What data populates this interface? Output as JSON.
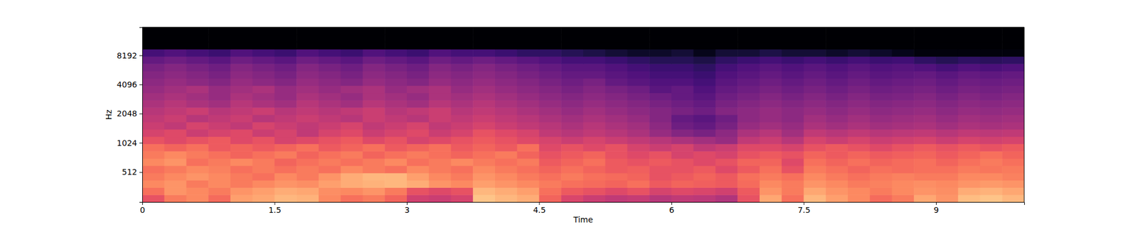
{
  "chart_data": {
    "type": "heatmap",
    "x_label": "Time",
    "y_label": "Hz",
    "xlim": [
      0,
      10
    ],
    "xticks": [
      0,
      1.5,
      3,
      4.5,
      6,
      7.5,
      9
    ],
    "ylim": [
      0,
      16000
    ],
    "yticks": [
      512,
      1024,
      2048,
      4096,
      8192
    ],
    "log": "y",
    "color": "magma",
    "zlim": [
      -80,
      0
    ],
    "x_edges": [
      0,
      0.25,
      0.5,
      0.75,
      1,
      1.25,
      1.5,
      1.75,
      2,
      2.25,
      2.5,
      2.75,
      3,
      3.25,
      3.5,
      3.75,
      4,
      4.25,
      4.5,
      4.75,
      5,
      5.25,
      5.5,
      5.75,
      6,
      6.25,
      6.5,
      6.75,
      7,
      7.25,
      7.5,
      7.75,
      8,
      8.25,
      8.5,
      8.75,
      9,
      9.25,
      9.5,
      9.75,
      10
    ],
    "y_edges": [
      0,
      125,
      250,
      375,
      500,
      625,
      750,
      875,
      1000,
      1189,
      1414,
      1682,
      2000,
      2378,
      2828,
      3364,
      4000,
      4757,
      5657,
      6727,
      8000,
      9514,
      11314,
      13454,
      16000
    ],
    "cells": [
      [
        -30,
        -22,
        -20,
        -25,
        -16,
        -15,
        -12,
        -13,
        -20,
        -24,
        -22,
        -26,
        -35,
        -36,
        -34,
        -10,
        -12,
        -14,
        -26,
        -33,
        -36,
        -38,
        -37,
        -40,
        -38,
        -39,
        -41,
        -30,
        -15,
        -24,
        -12,
        -16,
        -20,
        -25,
        -22,
        -15,
        -18,
        -11,
        -10,
        -12
      ],
      [
        -24,
        -18,
        -20,
        -22,
        -18,
        -16,
        -14,
        -15,
        -19,
        -20,
        -18,
        -22,
        -30,
        -32,
        -30,
        -12,
        -14,
        -16,
        -24,
        -28,
        -30,
        -32,
        -30,
        -34,
        -32,
        -33,
        -35,
        -28,
        -18,
        -22,
        -15,
        -18,
        -20,
        -22,
        -20,
        -18,
        -19,
        -14,
        -13,
        -15
      ],
      [
        -20,
        -18,
        -22,
        -20,
        -22,
        -20,
        -18,
        -19,
        -16,
        -14,
        -13,
        -12,
        -14,
        -18,
        -20,
        -16,
        -18,
        -20,
        -22,
        -24,
        -25,
        -26,
        -24,
        -28,
        -26,
        -27,
        -28,
        -25,
        -20,
        -22,
        -18,
        -20,
        -22,
        -21,
        -20,
        -19,
        -20,
        -18,
        -17,
        -18
      ],
      [
        -22,
        -20,
        -18,
        -20,
        -22,
        -24,
        -20,
        -22,
        -18,
        -14,
        -12,
        -12,
        -16,
        -20,
        -22,
        -18,
        -20,
        -22,
        -24,
        -22,
        -24,
        -25,
        -26,
        -30,
        -28,
        -26,
        -28,
        -24,
        -22,
        -24,
        -20,
        -22,
        -24,
        -22,
        -21,
        -22,
        -22,
        -20,
        -20,
        -21
      ],
      [
        -24,
        -22,
        -20,
        -21,
        -24,
        -22,
        -24,
        -22,
        -24,
        -20,
        -22,
        -24,
        -20,
        -22,
        -24,
        -20,
        -22,
        -24,
        -26,
        -24,
        -26,
        -28,
        -27,
        -30,
        -30,
        -28,
        -32,
        -28,
        -24,
        -30,
        -22,
        -24,
        -26,
        -24,
        -25,
        -24,
        -24,
        -22,
        -23,
        -22
      ],
      [
        -20,
        -18,
        -24,
        -22,
        -20,
        -22,
        -26,
        -24,
        -22,
        -24,
        -22,
        -20,
        -24,
        -22,
        -20,
        -22,
        -24,
        -22,
        -28,
        -26,
        -24,
        -28,
        -30,
        -28,
        -30,
        -32,
        -30,
        -26,
        -26,
        -32,
        -24,
        -26,
        -24,
        -26,
        -25,
        -24,
        -26,
        -24,
        -22,
        -24
      ],
      [
        -22,
        -20,
        -22,
        -24,
        -26,
        -24,
        -22,
        -26,
        -24,
        -22,
        -26,
        -24,
        -22,
        -24,
        -26,
        -24,
        -22,
        -26,
        -30,
        -28,
        -26,
        -30,
        -32,
        -30,
        -34,
        -32,
        -34,
        -30,
        -28,
        -30,
        -26,
        -28,
        -26,
        -28,
        -27,
        -26,
        -28,
        -26,
        -24,
        -26
      ],
      [
        -24,
        -26,
        -24,
        -28,
        -26,
        -28,
        -26,
        -24,
        -28,
        -26,
        -24,
        -28,
        -26,
        -24,
        -28,
        -26,
        -28,
        -24,
        -32,
        -30,
        -32,
        -30,
        -34,
        -36,
        -34,
        -38,
        -36,
        -32,
        -32,
        -34,
        -30,
        -28,
        -30,
        -32,
        -30,
        -28,
        -30,
        -28,
        -30,
        -28
      ],
      [
        -30,
        -32,
        -30,
        -28,
        -32,
        -30,
        -34,
        -32,
        -30,
        -28,
        -32,
        -30,
        -34,
        -32,
        -30,
        -28,
        -30,
        -32,
        -34,
        -36,
        -34,
        -36,
        -38,
        -40,
        -42,
        -44,
        -46,
        -38,
        -36,
        -40,
        -34,
        -36,
        -34,
        -36,
        -35,
        -34,
        -36,
        -34,
        -35,
        -34
      ],
      [
        -34,
        -32,
        -36,
        -34,
        -32,
        -36,
        -34,
        -38,
        -34,
        -32,
        -36,
        -34,
        -32,
        -36,
        -34,
        -30,
        -32,
        -34,
        -38,
        -40,
        -38,
        -40,
        -42,
        -46,
        -50,
        -52,
        -48,
        -42,
        -40,
        -44,
        -38,
        -40,
        -38,
        -40,
        -39,
        -38,
        -40,
        -38,
        -39,
        -38
      ],
      [
        -36,
        -38,
        -34,
        -36,
        -38,
        -34,
        -36,
        -38,
        -36,
        -34,
        -38,
        -36,
        -34,
        -38,
        -36,
        -34,
        -36,
        -38,
        -40,
        -42,
        -40,
        -42,
        -44,
        -48,
        -54,
        -56,
        -52,
        -46,
        -44,
        -46,
        -42,
        -44,
        -42,
        -44,
        -43,
        -42,
        -44,
        -42,
        -43,
        -42
      ],
      [
        -38,
        -36,
        -40,
        -38,
        -36,
        -40,
        -38,
        -36,
        -38,
        -40,
        -36,
        -38,
        -40,
        -36,
        -38,
        -36,
        -38,
        -40,
        -42,
        -44,
        -42,
        -44,
        -46,
        -50,
        -56,
        -58,
        -54,
        -48,
        -46,
        -48,
        -44,
        -46,
        -44,
        -46,
        -45,
        -44,
        -46,
        -44,
        -45,
        -44
      ],
      [
        -40,
        -38,
        -36,
        -40,
        -38,
        -36,
        -40,
        -38,
        -40,
        -38,
        -36,
        -40,
        -38,
        -36,
        -40,
        -38,
        -40,
        -42,
        -44,
        -46,
        -44,
        -46,
        -48,
        -50,
        -52,
        -54,
        -50,
        -48,
        -46,
        -48,
        -46,
        -48,
        -46,
        -48,
        -47,
        -46,
        -48,
        -46,
        -47,
        -46
      ],
      [
        -42,
        -40,
        -42,
        -44,
        -40,
        -42,
        -44,
        -40,
        -42,
        -44,
        -40,
        -42,
        -44,
        -40,
        -42,
        -40,
        -42,
        -44,
        -46,
        -48,
        -46,
        -48,
        -50,
        -52,
        -54,
        -56,
        -52,
        -50,
        -48,
        -50,
        -48,
        -50,
        -48,
        -50,
        -49,
        -48,
        -50,
        -48,
        -49,
        -48
      ],
      [
        -44,
        -42,
        -44,
        -46,
        -42,
        -44,
        -46,
        -42,
        -44,
        -46,
        -42,
        -44,
        -46,
        -42,
        -44,
        -42,
        -44,
        -46,
        -48,
        -50,
        -48,
        -50,
        -52,
        -54,
        -56,
        -58,
        -54,
        -52,
        -50,
        -52,
        -50,
        -52,
        -50,
        -52,
        -51,
        -50,
        -52,
        -50,
        -51,
        -50
      ],
      [
        -46,
        -44,
        -42,
        -46,
        -44,
        -42,
        -46,
        -44,
        -46,
        -44,
        -42,
        -46,
        -44,
        -42,
        -46,
        -44,
        -46,
        -48,
        -50,
        -52,
        -50,
        -52,
        -54,
        -58,
        -56,
        -60,
        -56,
        -54,
        -52,
        -54,
        -52,
        -54,
        -52,
        -54,
        -53,
        -52,
        -54,
        -52,
        -53,
        -52
      ],
      [
        -48,
        -46,
        -48,
        -50,
        -46,
        -48,
        -50,
        -46,
        -48,
        -50,
        -46,
        -48,
        -50,
        -46,
        -48,
        -46,
        -48,
        -50,
        -52,
        -54,
        -52,
        -56,
        -58,
        -60,
        -60,
        -62,
        -58,
        -56,
        -54,
        -56,
        -54,
        -56,
        -54,
        -56,
        -55,
        -54,
        -56,
        -54,
        -55,
        -54
      ],
      [
        -50,
        -48,
        -50,
        -52,
        -48,
        -50,
        -52,
        -48,
        -50,
        -52,
        -48,
        -50,
        -52,
        -48,
        -50,
        -48,
        -50,
        -52,
        -54,
        -56,
        -56,
        -58,
        -60,
        -62,
        -62,
        -64,
        -60,
        -58,
        -56,
        -58,
        -56,
        -58,
        -56,
        -58,
        -57,
        -56,
        -58,
        -56,
        -57,
        -56
      ],
      [
        -52,
        -50,
        -52,
        -54,
        -50,
        -52,
        -54,
        -50,
        -52,
        -54,
        -50,
        -52,
        -54,
        -50,
        -52,
        -50,
        -52,
        -54,
        -56,
        -58,
        -58,
        -60,
        -62,
        -64,
        -64,
        -66,
        -62,
        -60,
        -58,
        -60,
        -58,
        -60,
        -58,
        -60,
        -59,
        -60,
        -62,
        -60,
        -61,
        -60
      ],
      [
        -56,
        -54,
        -56,
        -58,
        -54,
        -56,
        -58,
        -54,
        -56,
        -58,
        -54,
        -56,
        -58,
        -54,
        -56,
        -54,
        -56,
        -58,
        -60,
        -62,
        -62,
        -64,
        -66,
        -68,
        -68,
        -70,
        -66,
        -64,
        -62,
        -64,
        -62,
        -64,
        -62,
        -64,
        -63,
        -66,
        -68,
        -66,
        -67,
        -66
      ],
      [
        -62,
        -60,
        -62,
        -64,
        -60,
        -62,
        -64,
        -60,
        -62,
        -64,
        -60,
        -62,
        -64,
        -60,
        -62,
        -62,
        -64,
        -66,
        -66,
        -68,
        -70,
        -72,
        -74,
        -74,
        -72,
        -76,
        -72,
        -72,
        -70,
        -72,
        -72,
        -74,
        -72,
        -74,
        -76,
        -78,
        -78,
        -78,
        -78,
        -78
      ],
      [
        -80,
        -80,
        -80,
        -80,
        -80,
        -80,
        -80,
        -80,
        -80,
        -80,
        -80,
        -80,
        -80,
        -80,
        -80,
        -80,
        -80,
        -80,
        -80,
        -80,
        -80,
        -80,
        -80,
        -80,
        -80,
        -80,
        -80,
        -80,
        -80,
        -80,
        -80,
        -80,
        -80,
        -80,
        -80,
        -80,
        -80,
        -80,
        -80,
        -80
      ],
      [
        -80,
        -80,
        -80,
        -80,
        -80,
        -80,
        -80,
        -80,
        -80,
        -80,
        -80,
        -80,
        -80,
        -80,
        -80,
        -80,
        -80,
        -80,
        -80,
        -80,
        -80,
        -80,
        -80,
        -80,
        -80,
        -80,
        -80,
        -80,
        -80,
        -80,
        -80,
        -80,
        -80,
        -80,
        -80,
        -80,
        -80,
        -80,
        -80,
        -80
      ],
      [
        -80,
        -80,
        -80,
        -80,
        -80,
        -80,
        -80,
        -80,
        -80,
        -80,
        -80,
        -80,
        -80,
        -80,
        -80,
        -80,
        -80,
        -80,
        -80,
        -80,
        -80,
        -80,
        -80,
        -80,
        -80,
        -80,
        -80,
        -80,
        -80,
        -80,
        -80,
        -80,
        -80,
        -80,
        -80,
        -80,
        -80,
        -80,
        -80,
        -80
      ]
    ]
  }
}
